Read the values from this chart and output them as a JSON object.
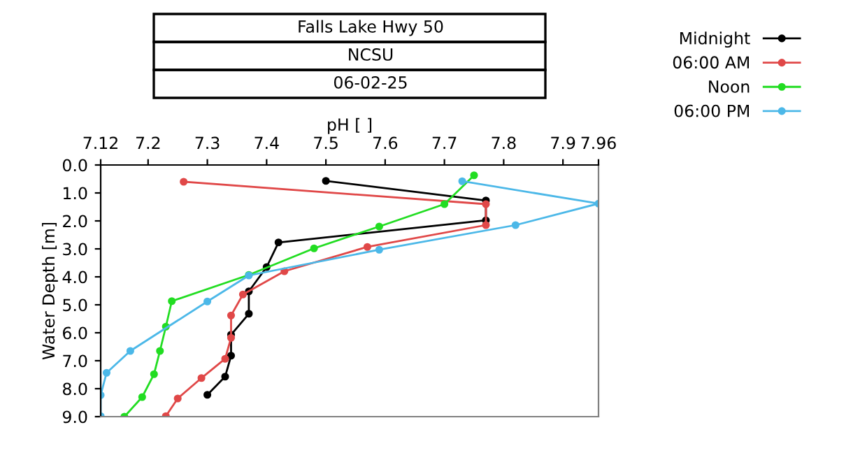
{
  "chart_data": {
    "type": "line",
    "title": "Falls Lake Hwy 50",
    "subtitle": "NCSU",
    "annotations": [
      "06-02-25"
    ],
    "xlabel": "pH [ ]",
    "ylabel": "Water Depth [m]",
    "xlim": [
      7.12,
      7.96
    ],
    "xticks": [
      7.12,
      7.2,
      7.3,
      7.4,
      7.5,
      7.6,
      7.7,
      7.8,
      7.9,
      7.96
    ],
    "ylim": [
      9,
      0
    ],
    "yticks": [
      {
        "value": 0,
        "label": "0.0"
      },
      {
        "value": 1,
        "label": "1.0"
      },
      {
        "value": 2,
        "label": "2.0"
      },
      {
        "value": 3,
        "label": "3.0"
      },
      {
        "value": 4,
        "label": "4.0"
      },
      {
        "value": 5,
        "label": "5.0"
      },
      {
        "value": 6,
        "label": "6.0"
      },
      {
        "value": 7,
        "label": "7.0"
      },
      {
        "value": 8,
        "label": "8.0"
      },
      {
        "value": 9,
        "label": "9.0"
      }
    ],
    "marker": "circle",
    "line_style": "solid",
    "legend": "top right",
    "grid": false,
    "series": [
      {
        "name": "Midnight",
        "color": "#000000",
        "x": [
          7.5,
          7.77,
          7.77,
          7.42,
          7.4,
          7.37,
          7.37,
          7.34,
          7.34,
          7.33,
          7.3
        ],
        "values": [
          0.57,
          1.27,
          1.98,
          2.77,
          3.65,
          4.52,
          5.32,
          6.07,
          6.82,
          7.57,
          8.22
        ]
      },
      {
        "name": "06:00 AM",
        "color": "#e04848",
        "x": [
          7.26,
          7.77,
          7.77,
          7.57,
          7.43,
          7.36,
          7.34,
          7.34,
          7.33,
          7.29,
          7.25,
          7.23
        ],
        "values": [
          0.6,
          1.4,
          2.15,
          2.93,
          3.8,
          4.63,
          5.38,
          6.18,
          6.93,
          7.62,
          8.35,
          8.98
        ]
      },
      {
        "name": "Noon",
        "color": "#22dd22",
        "x": [
          7.75,
          7.7,
          7.59,
          7.48,
          7.37,
          7.24,
          7.23,
          7.22,
          7.21,
          7.19,
          7.16
        ],
        "values": [
          0.37,
          1.4,
          2.2,
          2.98,
          3.93,
          4.87,
          5.78,
          6.65,
          7.48,
          8.3,
          9.0
        ]
      },
      {
        "name": "06:00 PM",
        "color": "#4cb8e8",
        "x": [
          7.73,
          7.96,
          7.82,
          7.59,
          7.37,
          7.3,
          7.17,
          7.13,
          7.12,
          7.12
        ],
        "values": [
          0.58,
          1.38,
          2.15,
          3.03,
          3.95,
          4.88,
          6.65,
          7.43,
          8.23,
          8.98
        ]
      }
    ]
  }
}
